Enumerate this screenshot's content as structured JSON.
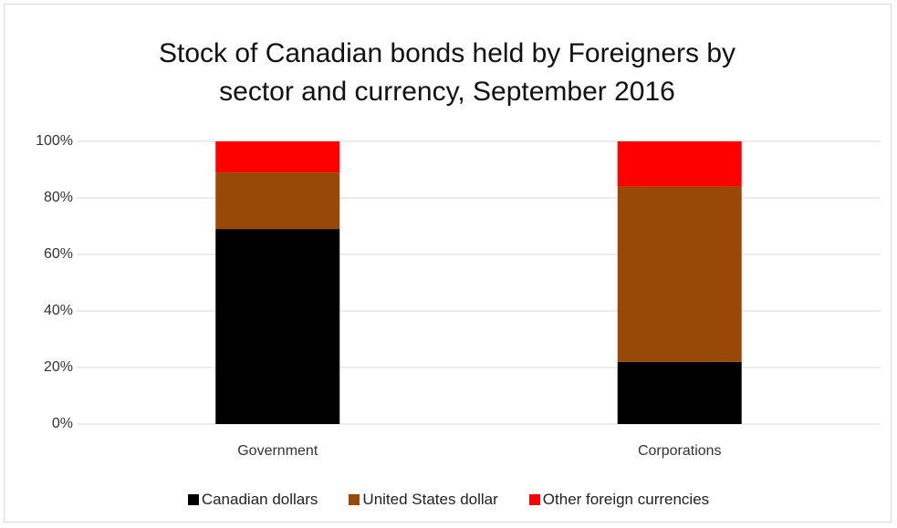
{
  "chart_data": {
    "type": "stacked_bar",
    "title": "Stock of Canadian bonds held by Foreigners by sector and currency, September 2016",
    "categories": [
      "Government",
      "Corporations"
    ],
    "series": [
      {
        "name": "Canadian dollars",
        "color": "#000000",
        "values": [
          69,
          22
        ]
      },
      {
        "name": "United States dollar",
        "color": "#984807",
        "values": [
          20,
          62
        ]
      },
      {
        "name": "Other foreign currencies",
        "color": "#ff0000",
        "values": [
          11,
          16
        ]
      }
    ],
    "ylim": [
      0,
      100
    ],
    "yticks": [
      {
        "value": 0,
        "label": "0%"
      },
      {
        "value": 20,
        "label": "20%"
      },
      {
        "value": 40,
        "label": "40%"
      },
      {
        "value": 60,
        "label": "60%"
      },
      {
        "value": 80,
        "label": "80%"
      },
      {
        "value": 100,
        "label": "100%"
      }
    ],
    "grid": true,
    "legend": "bottom"
  }
}
